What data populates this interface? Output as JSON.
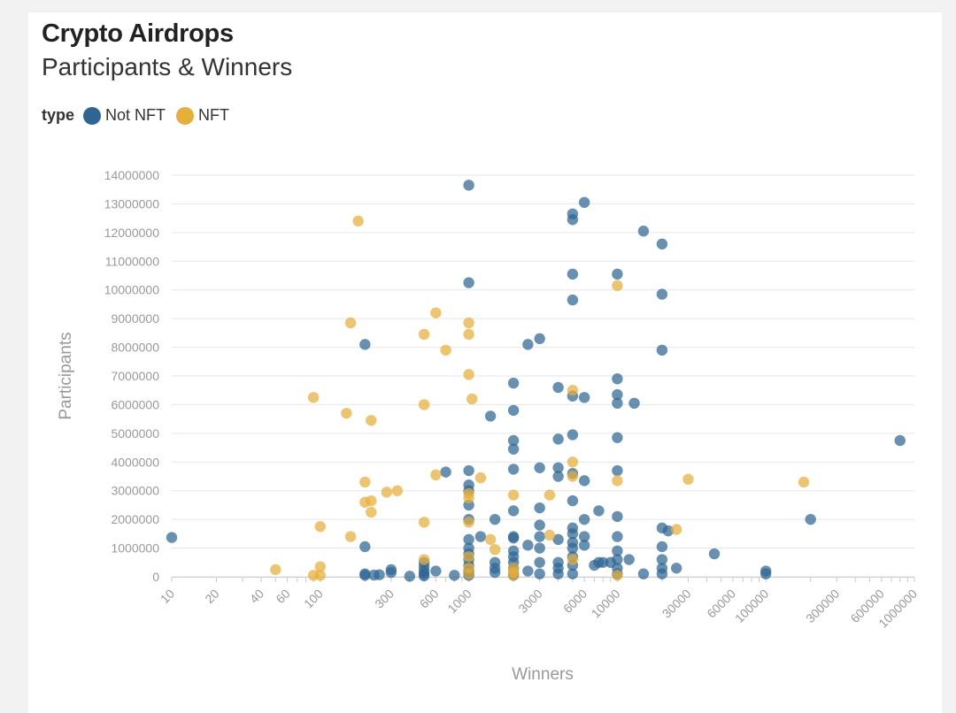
{
  "title": "Crypto Airdrops",
  "subtitle": "Participants & Winners",
  "legend": {
    "title": "type",
    "items": [
      {
        "label": "Not NFT",
        "color": "#2e6593"
      },
      {
        "label": "NFT",
        "color": "#e6ae3a"
      }
    ]
  },
  "chart_data": {
    "type": "scatter",
    "title": "Crypto Airdrops",
    "subtitle": "Participants & Winners",
    "xlabel": "Winners",
    "ylabel": "Participants",
    "xscale": "log",
    "xlim": [
      10,
      1000000
    ],
    "ylim": [
      0,
      14000000
    ],
    "x_tick_labels": [
      "10",
      "20",
      "40",
      "60",
      "100",
      "300",
      "600",
      "1000",
      "3000",
      "6000",
      "10000",
      "30000",
      "60000",
      "100000",
      "300000",
      "600000",
      "1000000"
    ],
    "y_tick_labels": [
      "0",
      "1000000",
      "2000000",
      "3000000",
      "4000000",
      "5000000",
      "6000000",
      "7000000",
      "8000000",
      "9000000",
      "10000000",
      "11000000",
      "12000000",
      "13000000",
      "14000000"
    ],
    "grid": true,
    "legend_position": "top-left",
    "series": [
      {
        "name": "Not NFT",
        "color": "#2e6593",
        "points": [
          [
            10,
            1370000
          ],
          [
            200,
            8100000
          ],
          [
            200,
            1050000
          ],
          [
            200,
            100000
          ],
          [
            200,
            50000
          ],
          [
            230,
            60000
          ],
          [
            250,
            70000
          ],
          [
            300,
            250000
          ],
          [
            300,
            150000
          ],
          [
            400,
            20000
          ],
          [
            500,
            500000
          ],
          [
            500,
            350000
          ],
          [
            500,
            200000
          ],
          [
            500,
            100000
          ],
          [
            500,
            30000
          ],
          [
            600,
            200000
          ],
          [
            700,
            3650000
          ],
          [
            800,
            50000
          ],
          [
            1000,
            13650000
          ],
          [
            1000,
            10250000
          ],
          [
            1000,
            3700000
          ],
          [
            1000,
            3200000
          ],
          [
            1000,
            3000000
          ],
          [
            1000,
            2500000
          ],
          [
            1000,
            2000000
          ],
          [
            1000,
            1300000
          ],
          [
            1000,
            1000000
          ],
          [
            1000,
            800000
          ],
          [
            1000,
            600000
          ],
          [
            1000,
            400000
          ],
          [
            1000,
            200000
          ],
          [
            1000,
            100000
          ],
          [
            1000,
            50000
          ],
          [
            1200,
            1400000
          ],
          [
            1400,
            5600000
          ],
          [
            1500,
            2000000
          ],
          [
            1500,
            500000
          ],
          [
            1500,
            300000
          ],
          [
            1500,
            150000
          ],
          [
            2000,
            6750000
          ],
          [
            2000,
            5800000
          ],
          [
            2000,
            4750000
          ],
          [
            2000,
            4450000
          ],
          [
            2000,
            3750000
          ],
          [
            2000,
            2300000
          ],
          [
            2000,
            1400000
          ],
          [
            2000,
            1350000
          ],
          [
            2000,
            900000
          ],
          [
            2000,
            700000
          ],
          [
            2000,
            500000
          ],
          [
            2000,
            300000
          ],
          [
            2000,
            100000
          ],
          [
            2000,
            50000
          ],
          [
            2500,
            8100000
          ],
          [
            2500,
            1100000
          ],
          [
            2500,
            200000
          ],
          [
            3000,
            8300000
          ],
          [
            3000,
            3800000
          ],
          [
            3000,
            2400000
          ],
          [
            3000,
            1800000
          ],
          [
            3000,
            1400000
          ],
          [
            3000,
            1000000
          ],
          [
            3000,
            500000
          ],
          [
            3000,
            100000
          ],
          [
            4000,
            6600000
          ],
          [
            4000,
            4800000
          ],
          [
            4000,
            3800000
          ],
          [
            4000,
            3500000
          ],
          [
            4000,
            1300000
          ],
          [
            4000,
            500000
          ],
          [
            4000,
            300000
          ],
          [
            4000,
            100000
          ],
          [
            5000,
            12650000
          ],
          [
            5000,
            12450000
          ],
          [
            5000,
            10550000
          ],
          [
            5000,
            9650000
          ],
          [
            5000,
            6300000
          ],
          [
            5000,
            4950000
          ],
          [
            5000,
            3600000
          ],
          [
            5000,
            2650000
          ],
          [
            5000,
            1700000
          ],
          [
            5000,
            1500000
          ],
          [
            5000,
            1200000
          ],
          [
            5000,
            1000000
          ],
          [
            5000,
            700000
          ],
          [
            5000,
            400000
          ],
          [
            5000,
            100000
          ],
          [
            6000,
            13050000
          ],
          [
            6000,
            6250000
          ],
          [
            6000,
            3350000
          ],
          [
            6000,
            2000000
          ],
          [
            6000,
            1400000
          ],
          [
            6000,
            1100000
          ],
          [
            7000,
            400000
          ],
          [
            7500,
            2300000
          ],
          [
            7500,
            500000
          ],
          [
            8000,
            500000
          ],
          [
            9000,
            500000
          ],
          [
            10000,
            10550000
          ],
          [
            10000,
            6900000
          ],
          [
            10000,
            6350000
          ],
          [
            10000,
            6050000
          ],
          [
            10000,
            4850000
          ],
          [
            10000,
            3700000
          ],
          [
            10000,
            2100000
          ],
          [
            10000,
            1400000
          ],
          [
            10000,
            900000
          ],
          [
            10000,
            600000
          ],
          [
            10000,
            300000
          ],
          [
            10000,
            100000
          ],
          [
            12000,
            600000
          ],
          [
            13000,
            6050000
          ],
          [
            15000,
            12050000
          ],
          [
            15000,
            100000
          ],
          [
            20000,
            11600000
          ],
          [
            20000,
            9850000
          ],
          [
            20000,
            7900000
          ],
          [
            20000,
            1700000
          ],
          [
            20000,
            1050000
          ],
          [
            20000,
            600000
          ],
          [
            20000,
            300000
          ],
          [
            20000,
            100000
          ],
          [
            22000,
            1600000
          ],
          [
            25000,
            300000
          ],
          [
            45000,
            800000
          ],
          [
            100000,
            200000
          ],
          [
            100000,
            100000
          ],
          [
            200000,
            2000000
          ],
          [
            800000,
            4750000
          ]
        ]
      },
      {
        "name": "NFT",
        "color": "#e6ae3a",
        "points": [
          [
            50,
            250000
          ],
          [
            90,
            6250000
          ],
          [
            90,
            50000
          ],
          [
            100,
            1750000
          ],
          [
            100,
            350000
          ],
          [
            100,
            50000
          ],
          [
            150,
            5700000
          ],
          [
            160,
            8850000
          ],
          [
            160,
            1400000
          ],
          [
            180,
            12400000
          ],
          [
            200,
            3300000
          ],
          [
            200,
            2600000
          ],
          [
            220,
            5450000
          ],
          [
            220,
            2650000
          ],
          [
            220,
            2250000
          ],
          [
            280,
            2950000
          ],
          [
            330,
            3000000
          ],
          [
            500,
            8450000
          ],
          [
            500,
            6000000
          ],
          [
            500,
            1900000
          ],
          [
            500,
            600000
          ],
          [
            600,
            9200000
          ],
          [
            600,
            3550000
          ],
          [
            700,
            7900000
          ],
          [
            1000,
            8850000
          ],
          [
            1000,
            8450000
          ],
          [
            1000,
            7050000
          ],
          [
            1000,
            2900000
          ],
          [
            1000,
            2750000
          ],
          [
            1000,
            1900000
          ],
          [
            1000,
            700000
          ],
          [
            1000,
            300000
          ],
          [
            1000,
            100000
          ],
          [
            1050,
            6200000
          ],
          [
            1200,
            3450000
          ],
          [
            1400,
            1300000
          ],
          [
            1500,
            950000
          ],
          [
            2000,
            2850000
          ],
          [
            2000,
            300000
          ],
          [
            2000,
            150000
          ],
          [
            2000,
            50000
          ],
          [
            3500,
            2850000
          ],
          [
            3500,
            1450000
          ],
          [
            5000,
            6500000
          ],
          [
            5000,
            4000000
          ],
          [
            5000,
            3500000
          ],
          [
            5000,
            600000
          ],
          [
            10000,
            10150000
          ],
          [
            10000,
            3350000
          ],
          [
            10000,
            50000
          ],
          [
            25000,
            1650000
          ],
          [
            30000,
            3400000
          ],
          [
            180000,
            3300000
          ]
        ]
      }
    ]
  }
}
